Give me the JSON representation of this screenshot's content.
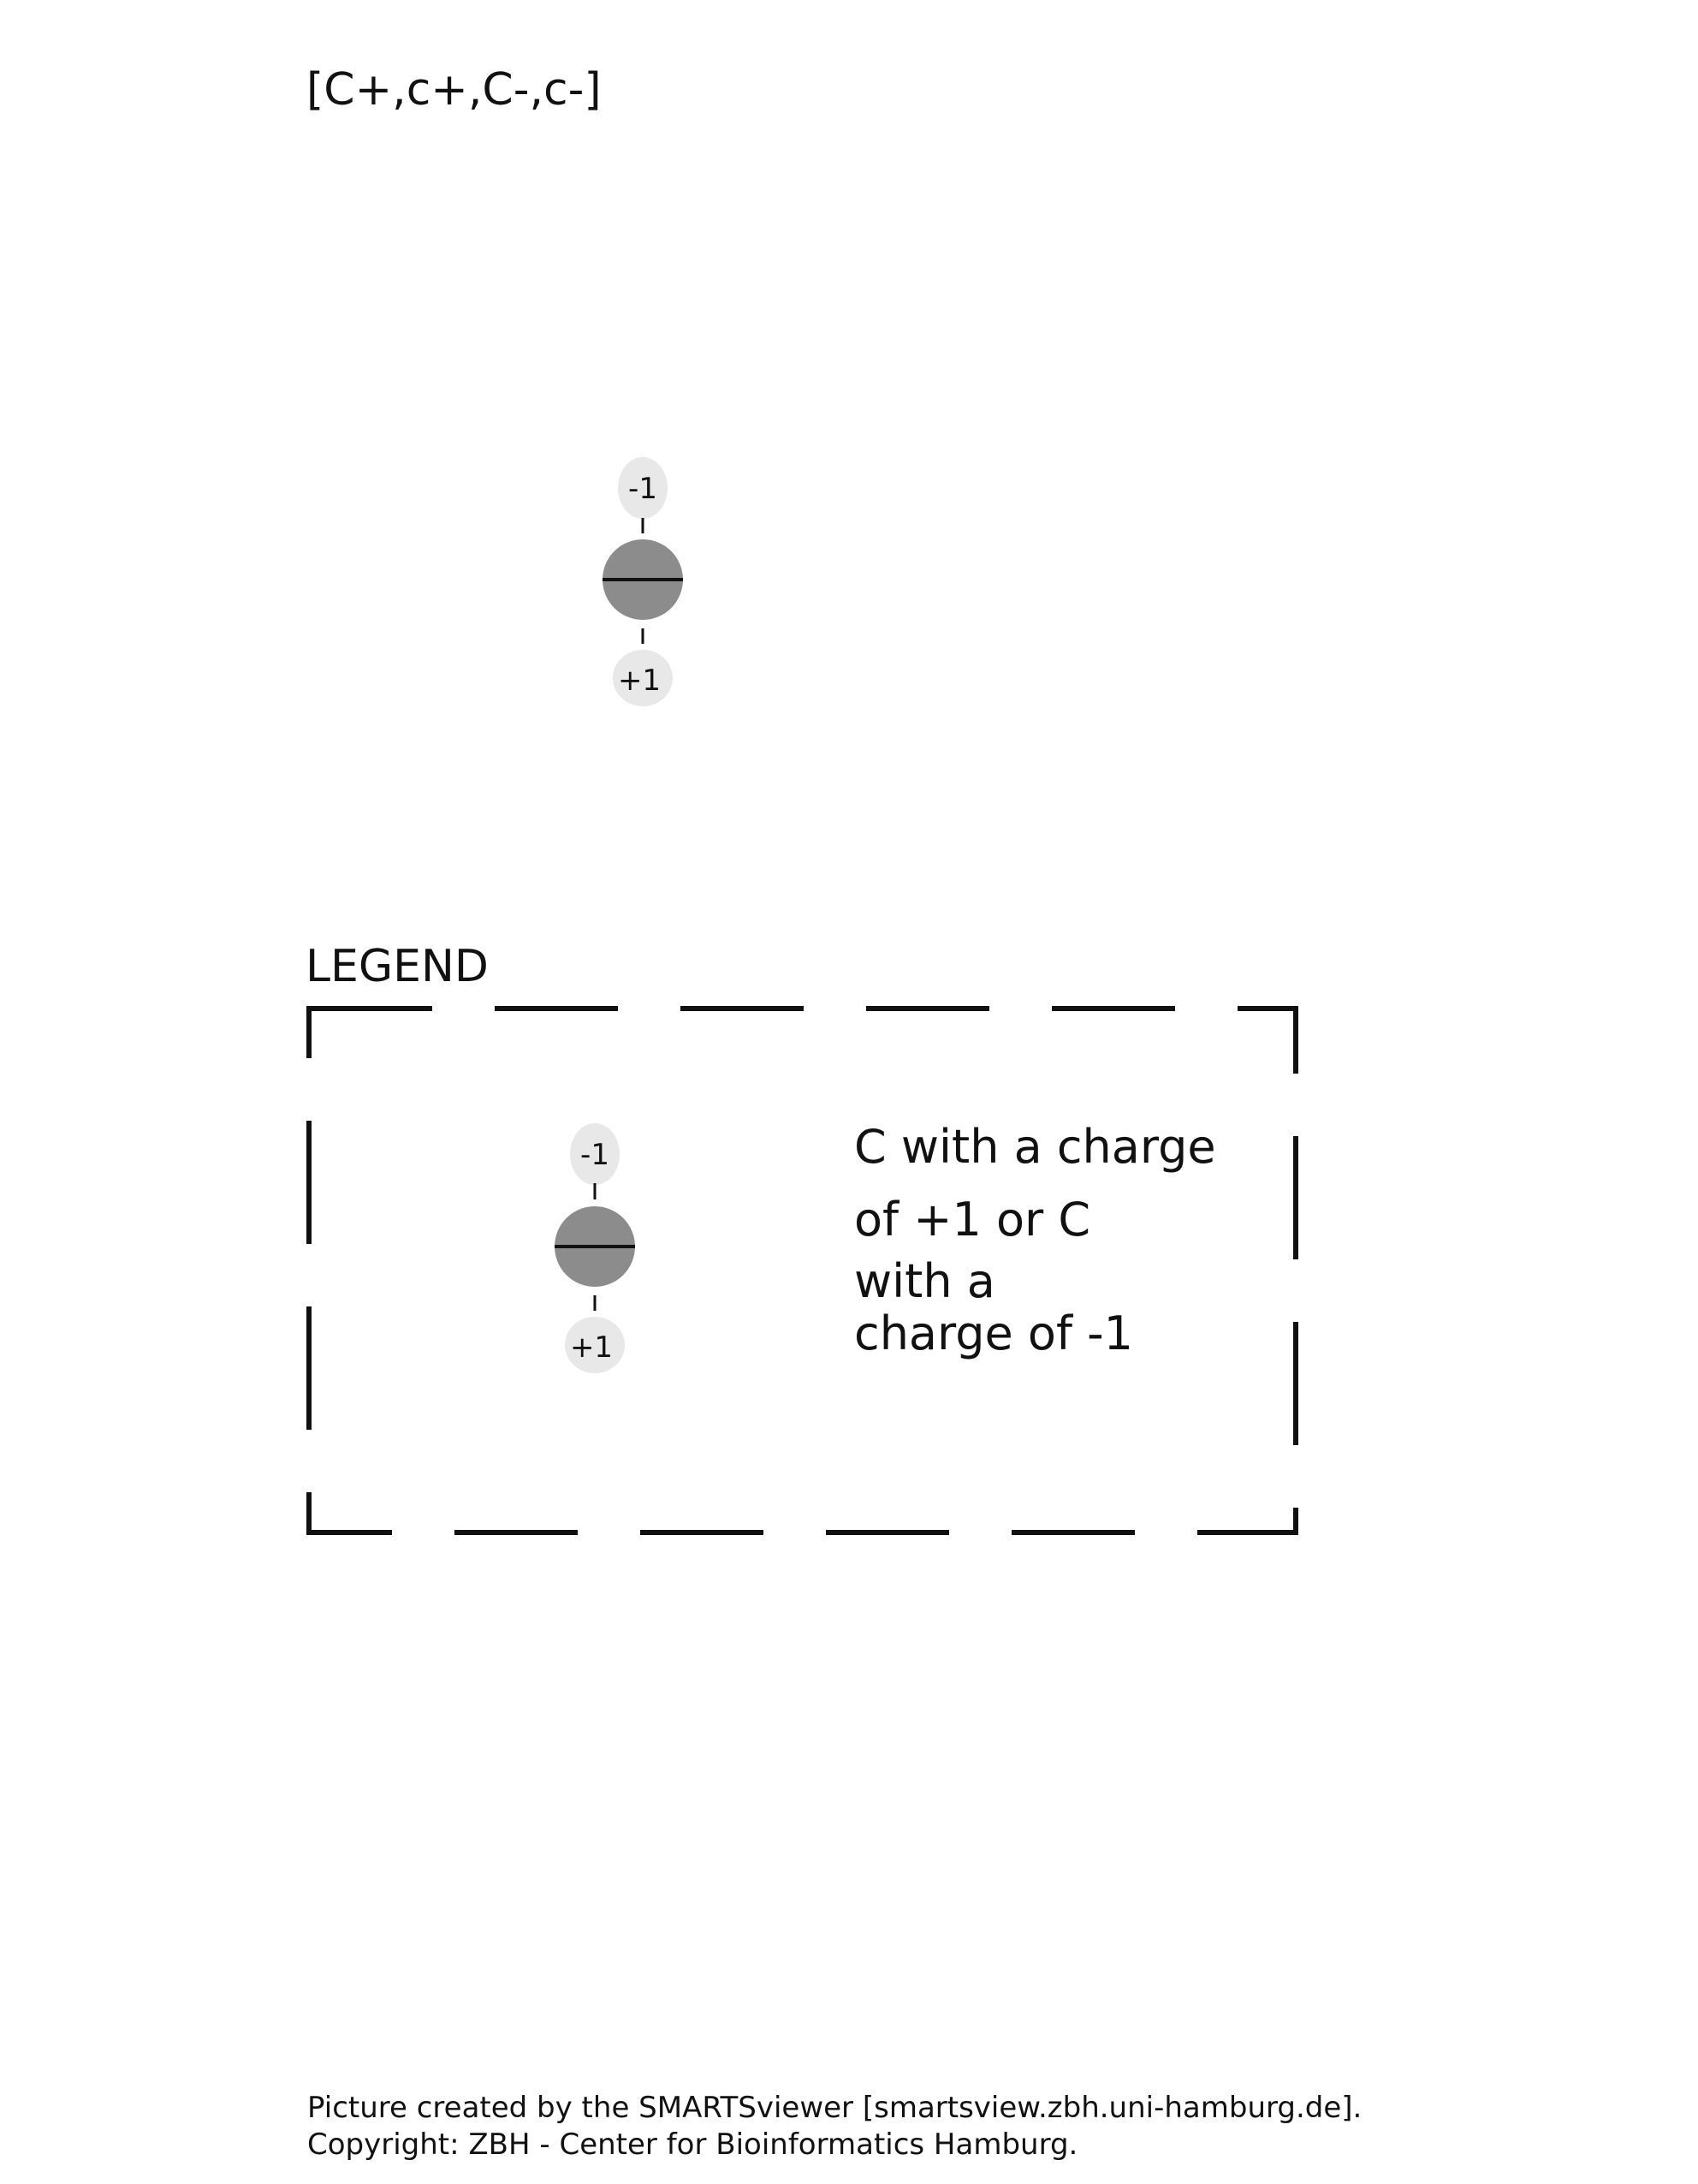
{
  "smarts_pattern": "[C+,c+,C-,c-]",
  "legend": {
    "title": "LEGEND",
    "description_lines": [
      "C with a charge",
      "of +1 or C",
      "with a",
      "charge of -1"
    ]
  },
  "atom": {
    "charge_top": "-1",
    "charge_bottom": "+1",
    "fill_color": "#8c8c8c",
    "label_bg_color": "#e8e8e8"
  },
  "footer": {
    "line1": "Picture created by the SMARTSviewer [smartsview.zbh.uni-hamburg.de].",
    "line2": "Copyright: ZBH - Center for Bioinformatics Hamburg."
  }
}
